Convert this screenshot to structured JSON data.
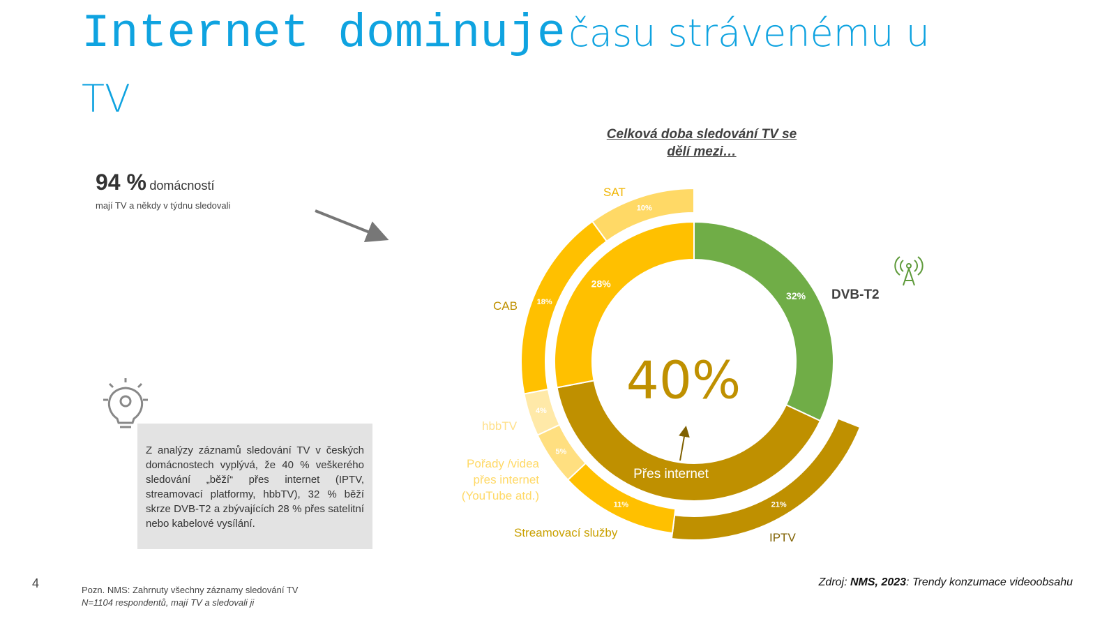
{
  "header": {
    "title_mono": "Internet dominuje",
    "title_rest": "času strávenému u TV"
  },
  "stat": {
    "value": "94 %",
    "unit": "domácností",
    "subtitle": "mají TV a někdy v týdnu sledovali"
  },
  "note": "Z analýzy záznamů sledování TV v českých domácnostech vyplývá, že 40 % veškerého sledování „běží“ přes internet (IPTV, streamovací platformy, hbbTV), 32 % běží skrze DVB-T2 a zbývajících 28 % přes satelitní nebo kabelové vysílání.",
  "page_number": "4",
  "footnote": {
    "line1": "Pozn. NMS: Zahrnuty všechny záznamy sledování TV",
    "line2": "N=1104 respondentů, mají TV a sledovali ji"
  },
  "source": {
    "prefix": "Zdroj: ",
    "name": "NMS, 2023",
    "rest": ": Trendy konzumace videoobsahu"
  },
  "chart_data": {
    "type": "donut",
    "title": "Celková doba sledování TV se dělí mezi…",
    "inner": {
      "categories": [
        "DVB-T2",
        "Přes internet",
        null
      ],
      "values": [
        32,
        40,
        28
      ],
      "value_labels": [
        "32%",
        "40%",
        "28%"
      ],
      "colors": [
        "#70ad47",
        "#bf9000",
        "#ffc000"
      ]
    },
    "outer": {
      "categories": [
        "IPTV",
        "Streamovací služby",
        "Pořady /videa přes internet (YouTube atd.)",
        "hbbTV",
        "CAB",
        "SAT"
      ],
      "values": [
        21,
        11,
        5,
        4,
        18,
        10
      ],
      "value_labels": [
        "21%",
        "11%",
        "5%",
        "4%",
        "18%",
        "10%"
      ],
      "colors": [
        "#bf9000",
        "#ffc000",
        "#ffdf80",
        "#ffe9a8",
        "#ffc000",
        "#ffd966"
      ]
    }
  }
}
